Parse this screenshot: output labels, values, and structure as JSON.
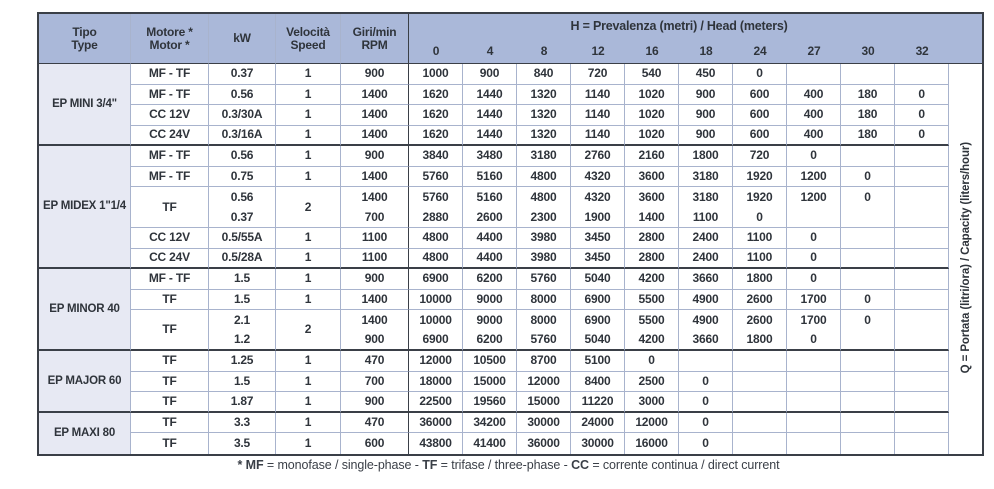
{
  "colors": {
    "header_bg": "#aab8d9",
    "tipo_bg": "#e7e9f3",
    "grid_line": "#a8b3cd",
    "dark_line": "#3a3f47",
    "text": "#2f343b"
  },
  "table": {
    "headers": {
      "tipo": [
        "Tipo",
        "Type"
      ],
      "motore": [
        "Motore *",
        "Motor *"
      ],
      "kw": "kW",
      "velocita": [
        "Velocità",
        "Speed"
      ],
      "giri": [
        "Giri/min",
        "RPM"
      ],
      "head_title": "H = Prevalenza (metri) / Head (meters)",
      "head_cols": [
        "0",
        "4",
        "8",
        "12",
        "16",
        "18",
        "24",
        "27",
        "30",
        "32"
      ]
    },
    "q_label": "Q = Portata (litri/ora) / Capacity (liters/hour)",
    "sections": [
      {
        "tipo": "EP MINI 3/4\"",
        "rows": [
          {
            "motore": "MF - TF",
            "kw": [
              "0.37"
            ],
            "speed": "1",
            "rpm": [
              "900"
            ],
            "values": [
              [
                "1000",
                "900",
                "840",
                "720",
                "540",
                "450",
                "0",
                "",
                "",
                ""
              ]
            ]
          },
          {
            "motore": "MF - TF",
            "kw": [
              "0.56"
            ],
            "speed": "1",
            "rpm": [
              "1400"
            ],
            "values": [
              [
                "1620",
                "1440",
                "1320",
                "1140",
                "1020",
                "900",
                "600",
                "400",
                "180",
                "0"
              ]
            ]
          },
          {
            "motore": "CC 12V",
            "kw": [
              "0.3/30A"
            ],
            "speed": "1",
            "rpm": [
              "1400"
            ],
            "values": [
              [
                "1620",
                "1440",
                "1320",
                "1140",
                "1020",
                "900",
                "600",
                "400",
                "180",
                "0"
              ]
            ]
          },
          {
            "motore": "CC 24V",
            "kw": [
              "0.3/16A"
            ],
            "speed": "1",
            "rpm": [
              "1400"
            ],
            "values": [
              [
                "1620",
                "1440",
                "1320",
                "1140",
                "1020",
                "900",
                "600",
                "400",
                "180",
                "0"
              ]
            ]
          }
        ]
      },
      {
        "tipo": "EP MIDEX 1\"1/4",
        "rows": [
          {
            "motore": "MF - TF",
            "kw": [
              "0.56"
            ],
            "speed": "1",
            "rpm": [
              "900"
            ],
            "values": [
              [
                "3840",
                "3480",
                "3180",
                "2760",
                "2160",
                "1800",
                "720",
                "0",
                "",
                ""
              ]
            ]
          },
          {
            "motore": "MF - TF",
            "kw": [
              "0.75"
            ],
            "speed": "1",
            "rpm": [
              "1400"
            ],
            "values": [
              [
                "5760",
                "5160",
                "4800",
                "4320",
                "3600",
                "3180",
                "1920",
                "1200",
                "0",
                ""
              ]
            ]
          },
          {
            "motore": "TF",
            "kw": [
              "0.56",
              "0.37"
            ],
            "speed": "2",
            "rpm": [
              "1400",
              "700"
            ],
            "values": [
              [
                "5760",
                "5160",
                "4800",
                "4320",
                "3600",
                "3180",
                "1920",
                "1200",
                "0",
                ""
              ],
              [
                "2880",
                "2600",
                "2300",
                "1900",
                "1400",
                "1100",
                "0",
                "",
                "",
                ""
              ]
            ]
          },
          {
            "motore": "CC 12V",
            "kw": [
              "0.5/55A"
            ],
            "speed": "1",
            "rpm": [
              "1100"
            ],
            "values": [
              [
                "4800",
                "4400",
                "3980",
                "3450",
                "2800",
                "2400",
                "1100",
                "0",
                "",
                ""
              ]
            ]
          },
          {
            "motore": "CC 24V",
            "kw": [
              "0.5/28A"
            ],
            "speed": "1",
            "rpm": [
              "1100"
            ],
            "values": [
              [
                "4800",
                "4400",
                "3980",
                "3450",
                "2800",
                "2400",
                "1100",
                "0",
                "",
                ""
              ]
            ]
          }
        ]
      },
      {
        "tipo": "EP MINOR 40",
        "rows": [
          {
            "motore": "MF - TF",
            "kw": [
              "1.5"
            ],
            "speed": "1",
            "rpm": [
              "900"
            ],
            "values": [
              [
                "6900",
                "6200",
                "5760",
                "5040",
                "4200",
                "3660",
                "1800",
                "0",
                "",
                ""
              ]
            ]
          },
          {
            "motore": "TF",
            "kw": [
              "1.5"
            ],
            "speed": "1",
            "rpm": [
              "1400"
            ],
            "values": [
              [
                "10000",
                "9000",
                "8000",
                "6900",
                "5500",
                "4900",
                "2600",
                "1700",
                "0",
                ""
              ]
            ]
          },
          {
            "motore": "TF",
            "kw": [
              "2.1",
              "1.2"
            ],
            "speed": "2",
            "rpm": [
              "1400",
              "900"
            ],
            "values": [
              [
                "10000",
                "9000",
                "8000",
                "6900",
                "5500",
                "4900",
                "2600",
                "1700",
                "0",
                ""
              ],
              [
                "6900",
                "6200",
                "5760",
                "5040",
                "4200",
                "3660",
                "1800",
                "0",
                "",
                ""
              ]
            ]
          }
        ]
      },
      {
        "tipo": "EP MAJOR 60",
        "rows": [
          {
            "motore": "TF",
            "kw": [
              "1.25"
            ],
            "speed": "1",
            "rpm": [
              "470"
            ],
            "values": [
              [
                "12000",
                "10500",
                "8700",
                "5100",
                "0",
                "",
                "",
                "",
                "",
                ""
              ]
            ]
          },
          {
            "motore": "TF",
            "kw": [
              "1.5"
            ],
            "speed": "1",
            "rpm": [
              "700"
            ],
            "values": [
              [
                "18000",
                "15000",
                "12000",
                "8400",
                "2500",
                "0",
                "",
                "",
                "",
                ""
              ]
            ]
          },
          {
            "motore": "TF",
            "kw": [
              "1.87"
            ],
            "speed": "1",
            "rpm": [
              "900"
            ],
            "values": [
              [
                "22500",
                "19560",
                "15000",
                "11220",
                "3000",
                "0",
                "",
                "",
                "",
                ""
              ]
            ]
          }
        ]
      },
      {
        "tipo": "EP MAXI 80",
        "rows": [
          {
            "motore": "TF",
            "kw": [
              "3.3"
            ],
            "speed": "1",
            "rpm": [
              "470"
            ],
            "values": [
              [
                "36000",
                "34200",
                "30000",
                "24000",
                "12000",
                "0",
                "",
                "",
                "",
                ""
              ]
            ]
          },
          {
            "motore": "TF",
            "kw": [
              "3.5"
            ],
            "speed": "1",
            "rpm": [
              "600"
            ],
            "values": [
              [
                "43800",
                "41400",
                "36000",
                "30000",
                "16000",
                "0",
                "",
                "",
                "",
                ""
              ]
            ]
          }
        ]
      }
    ]
  },
  "footnote": {
    "segments": [
      "* MF",
      " = monofase / single-phase - ",
      "TF",
      " = trifase / three-phase - ",
      "CC",
      " = corrente continua / direct current"
    ]
  }
}
